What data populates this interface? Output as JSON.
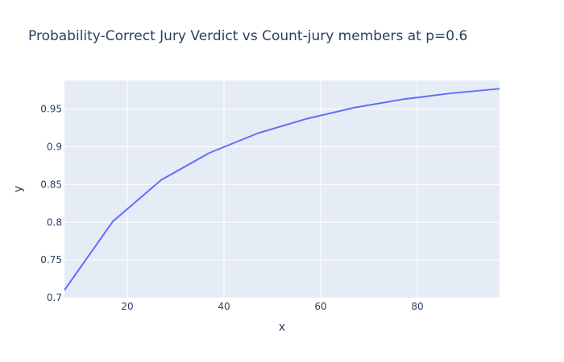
{
  "colors": {
    "plot_background": "#E5ECF6",
    "gridline": "#ffffff",
    "line": "#636EFA",
    "text": "#2a3f5f",
    "paper": "#ffffff"
  },
  "chart_data": {
    "type": "line",
    "title": "Probability-Correct Jury Verdict vs Count-jury members at p=0.6",
    "xlabel": "x",
    "ylabel": "y",
    "xlim": [
      7,
      97
    ],
    "ylim": [
      0.7,
      0.988
    ],
    "grid": true,
    "x_ticks": [
      {
        "value": 20,
        "label": "20"
      },
      {
        "value": 40,
        "label": "40"
      },
      {
        "value": 60,
        "label": "60"
      },
      {
        "value": 80,
        "label": "80"
      }
    ],
    "y_ticks": [
      {
        "value": 0.7,
        "label": "0.7"
      },
      {
        "value": 0.75,
        "label": "0.75"
      },
      {
        "value": 0.8,
        "label": "0.8"
      },
      {
        "value": 0.85,
        "label": "0.85"
      },
      {
        "value": 0.9,
        "label": "0.9"
      },
      {
        "value": 0.95,
        "label": "0.95"
      }
    ],
    "series": [
      {
        "x": [
          7,
          17,
          27,
          37,
          47,
          57,
          67,
          77,
          87,
          97
        ],
        "y": [
          0.71,
          0.801,
          0.856,
          0.892,
          0.918,
          0.937,
          0.952,
          0.963,
          0.971,
          0.977
        ]
      }
    ]
  }
}
